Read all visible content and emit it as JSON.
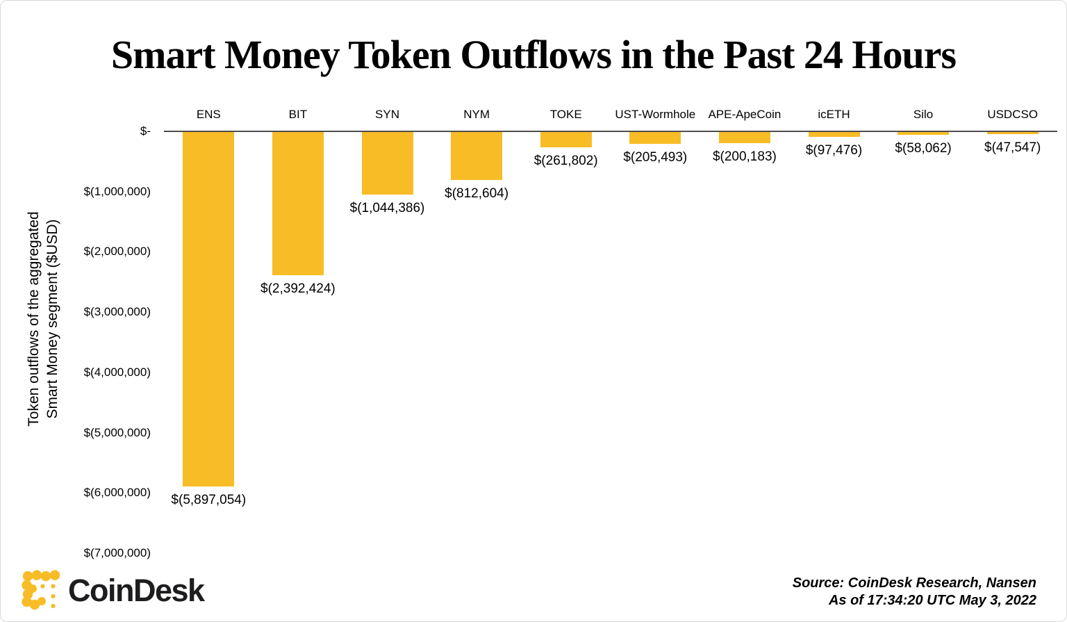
{
  "chart_data": {
    "type": "bar",
    "title": "Smart Money Token Outflows in the Past 24 Hours",
    "categories": [
      "ENS",
      "BIT",
      "SYN",
      "NYM",
      "TOKE",
      "UST-Wormhole",
      "APE-ApeCoin",
      "icETH",
      "Silo",
      "USDCSO"
    ],
    "values": [
      -5897054,
      -2392424,
      -1044386,
      -812604,
      -261802,
      -205493,
      -200183,
      -97476,
      -58062,
      -47547
    ],
    "value_labels": [
      "$(5,897,054)",
      "$(2,392,424)",
      "$(1,044,386)",
      "$(812,604)",
      "$(261,802)",
      "$(205,493)",
      "$(200,183)",
      "$(97,476)",
      "$(58,062)",
      "$(47,547)"
    ],
    "y_axis_title_line1": "Token outflows of the aggregated",
    "y_axis_title_line2": "Smart Money segment ($USD)",
    "y_ticks": [
      "$-",
      "$(1,000,000)",
      "$(2,000,000)",
      "$(3,000,000)",
      "$(4,000,000)",
      "$(5,000,000)",
      "$(6,000,000)",
      "$(7,000,000)"
    ],
    "y_tick_values": [
      0,
      -1000000,
      -2000000,
      -3000000,
      -4000000,
      -5000000,
      -6000000,
      -7000000
    ],
    "ylim": [
      -7000000,
      0
    ],
    "xlabel": "",
    "grid": false,
    "legend": "none",
    "bar_color": "#F8BC26"
  },
  "footer": {
    "brand_wordmark": "CoinDesk",
    "brand_icon": "coindesk-dots-logo",
    "source_line1": "Source: CoinDesk Research, Nansen",
    "source_line2": "As of 17:34:20 UTC May 3, 2022"
  },
  "colors": {
    "accent_yellow": "#F8BC26",
    "axis_line": "#4d4d4d",
    "text": "#000000",
    "wordmark": "#1d1d1f"
  }
}
